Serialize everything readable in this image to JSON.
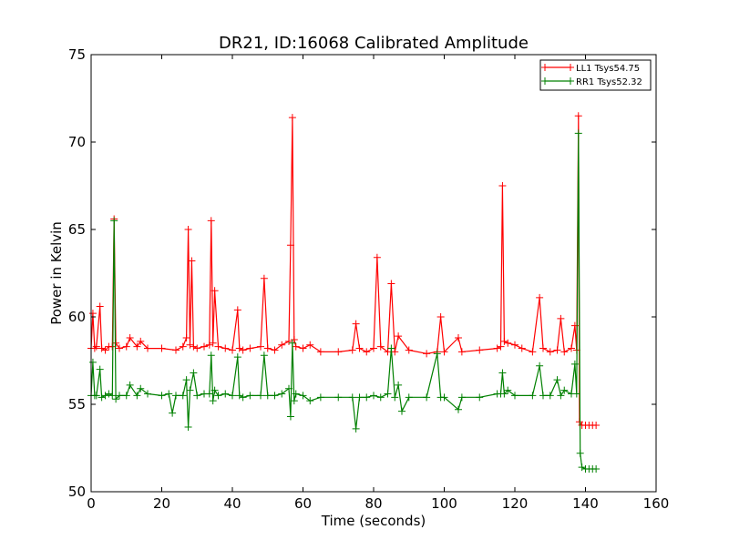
{
  "chart_data": {
    "type": "line",
    "title": "DR21, ID:16068 Calibrated Amplitude",
    "xlabel": "Time (seconds)",
    "ylabel": "Power in Kelvin",
    "xlim": [
      0,
      160
    ],
    "ylim": [
      50,
      75
    ],
    "xticks": [
      "0",
      "20",
      "40",
      "60",
      "80",
      "100",
      "120",
      "140",
      "160"
    ],
    "yticks": [
      "50",
      "55",
      "60",
      "65",
      "70",
      "75"
    ],
    "legend_position": "top-right",
    "grid": false,
    "series": [
      {
        "name": "LL1 Tsys54.75",
        "color": "#ff0000",
        "marker": "+",
        "x": [
          0,
          0.5,
          1,
          1.5,
          2.5,
          3,
          4,
          5,
          6,
          6.5,
          7,
          8,
          10,
          11,
          13,
          14,
          16,
          20,
          24,
          26,
          27,
          27.5,
          28,
          28.5,
          29,
          30,
          32,
          33.5,
          34,
          34.5,
          35,
          36,
          38,
          40,
          41.5,
          42,
          43,
          45,
          48,
          49,
          50,
          52,
          54,
          56,
          56.5,
          57,
          57.5,
          58,
          60,
          62,
          65,
          70,
          74,
          75,
          76,
          78,
          80,
          81,
          82,
          84,
          85,
          86,
          87,
          90,
          95,
          98,
          99,
          100,
          104,
          105,
          110,
          115,
          116,
          116.5,
          117,
          118,
          120,
          122,
          125,
          127,
          128,
          130,
          132,
          133,
          134,
          136,
          137,
          137.5,
          138,
          138.3,
          139,
          140,
          141,
          142,
          143
        ],
        "y": [
          58.2,
          60.2,
          58.2,
          58.3,
          60.6,
          58.2,
          58.1,
          58.3,
          58.3,
          65.6,
          58.5,
          58.2,
          58.3,
          58.8,
          58.3,
          58.6,
          58.2,
          58.2,
          58.1,
          58.3,
          58.8,
          65.0,
          58.4,
          63.2,
          58.3,
          58.2,
          58.3,
          58.4,
          65.5,
          58.5,
          61.5,
          58.3,
          58.2,
          58.1,
          60.4,
          58.2,
          58.1,
          58.2,
          58.3,
          62.2,
          58.2,
          58.1,
          58.4,
          58.6,
          64.1,
          71.4,
          58.7,
          58.3,
          58.2,
          58.4,
          58.0,
          58.0,
          58.1,
          59.6,
          58.2,
          58.0,
          58.2,
          63.4,
          58.3,
          58.0,
          61.9,
          58.0,
          58.9,
          58.1,
          57.9,
          58.0,
          60.0,
          58.0,
          58.8,
          58.0,
          58.1,
          58.2,
          58.3,
          67.5,
          58.6,
          58.5,
          58.4,
          58.2,
          58.0,
          61.1,
          58.2,
          58.0,
          58.1,
          59.9,
          58.0,
          58.2,
          59.5,
          58.1,
          71.5,
          54.0,
          53.8,
          53.8,
          53.8,
          53.8,
          53.8
        ]
      },
      {
        "name": "RR1 Tsys52.32",
        "color": "#008000",
        "marker": "+",
        "x": [
          0,
          0.5,
          1,
          1.5,
          2.5,
          3,
          4,
          5,
          6,
          6.5,
          7,
          8,
          10,
          11,
          13,
          14,
          16,
          20,
          22,
          23,
          24,
          26,
          27,
          27.5,
          28,
          29,
          30,
          32,
          33.5,
          34,
          34.5,
          35,
          36,
          38,
          40,
          41.5,
          42,
          43,
          45,
          48,
          49,
          50,
          52,
          54,
          56,
          56.5,
          57,
          57.5,
          58,
          60,
          62,
          65,
          70,
          74,
          75,
          76,
          78,
          80,
          82,
          84,
          85,
          86,
          87,
          88,
          90,
          95,
          98,
          99,
          100,
          104,
          105,
          110,
          115,
          116,
          116.5,
          117,
          118,
          120,
          125,
          127,
          128,
          130,
          132,
          133,
          134,
          136,
          137,
          137.5,
          138,
          138.5,
          139,
          140,
          141,
          142,
          143
        ],
        "y": [
          55.5,
          57.4,
          55.5,
          55.5,
          57.0,
          55.4,
          55.5,
          55.6,
          55.5,
          65.5,
          55.3,
          55.5,
          55.5,
          56.1,
          55.5,
          55.9,
          55.6,
          55.5,
          55.6,
          54.5,
          55.5,
          55.5,
          56.4,
          53.7,
          55.8,
          56.8,
          55.5,
          55.6,
          55.6,
          57.8,
          55.2,
          55.8,
          55.5,
          55.6,
          55.5,
          57.7,
          55.5,
          55.4,
          55.5,
          55.5,
          57.8,
          55.5,
          55.5,
          55.6,
          55.9,
          54.3,
          58.5,
          55.2,
          55.6,
          55.5,
          55.2,
          55.4,
          55.4,
          55.4,
          53.6,
          55.4,
          55.4,
          55.5,
          55.4,
          55.6,
          58.2,
          55.4,
          56.1,
          54.6,
          55.4,
          55.4,
          57.9,
          55.4,
          55.4,
          54.7,
          55.4,
          55.4,
          55.6,
          55.6,
          56.8,
          55.6,
          55.8,
          55.5,
          55.5,
          57.2,
          55.5,
          55.5,
          56.4,
          55.5,
          55.8,
          55.6,
          57.3,
          55.6,
          70.5,
          52.2,
          51.4,
          51.3,
          51.3,
          51.3,
          51.3
        ]
      }
    ]
  }
}
